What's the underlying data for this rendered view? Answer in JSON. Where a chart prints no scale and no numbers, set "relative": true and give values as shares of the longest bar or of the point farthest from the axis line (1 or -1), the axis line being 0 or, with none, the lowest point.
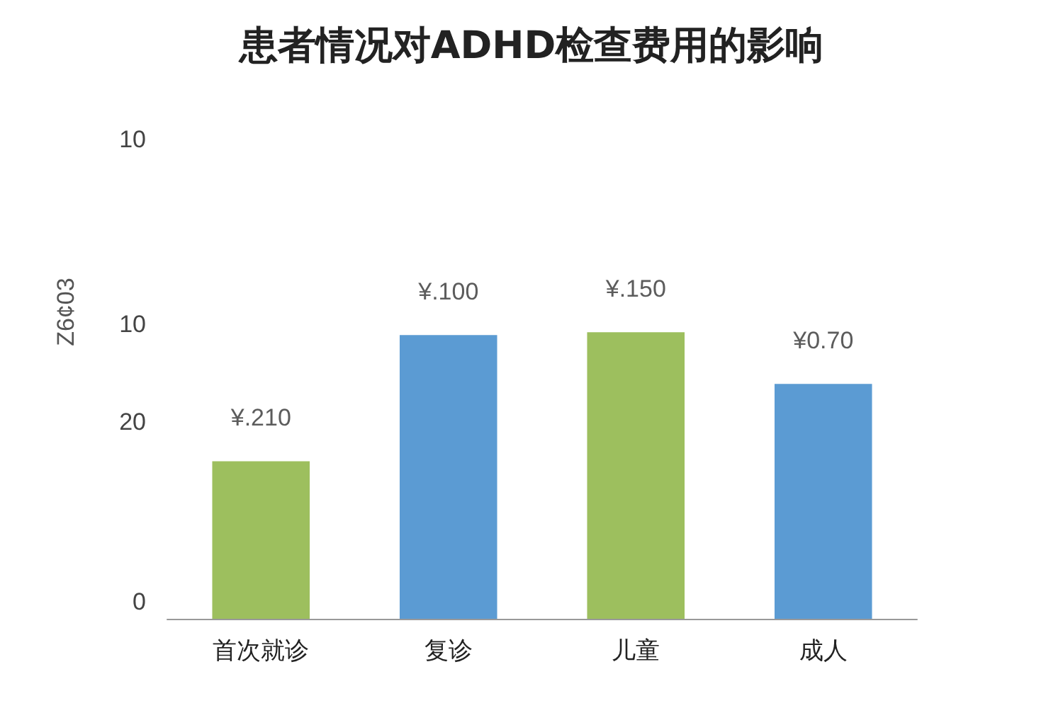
{
  "chart_data": {
    "type": "bar",
    "title": "患者情况对ADHD检查费用的影响",
    "ylabel": "Z6¢03",
    "relative": true,
    "categories": [
      "首次就诊",
      "复诊",
      "儿童",
      "成人"
    ],
    "values": [
      0.55,
      0.99,
      1,
      0.82
    ],
    "colors": [
      "#9dbf5e",
      "#5b9bd3",
      "#9dbf5e",
      "#5b9bd3"
    ],
    "annotations": [
      {
        "text": "¥.210",
        "x": "首次就诊",
        "y": 0.55
      },
      {
        "text": "¥.100",
        "x": "复诊",
        "y": 0.99
      },
      {
        "text": "¥.150",
        "x": "儿童",
        "y": 1
      },
      {
        "text": "¥0.70",
        "x": "成人",
        "y": 0.82
      },
      "10",
      "10",
      "20",
      "0"
    ]
  }
}
